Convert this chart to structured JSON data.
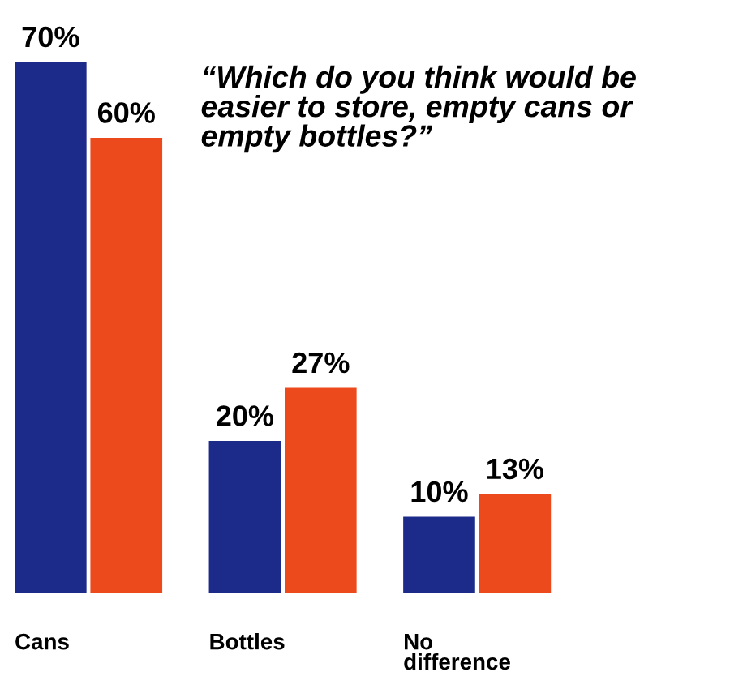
{
  "chart_data": {
    "type": "bar",
    "categories": [
      "Cans",
      "Bottles",
      "No\ndifference"
    ],
    "series": [
      {
        "color": "#1c2a8a",
        "values": [
          70,
          20,
          10
        ],
        "value_labels": [
          "70%",
          "20%",
          "10%"
        ]
      },
      {
        "color": "#ec4a1c",
        "values": [
          60,
          27,
          13
        ],
        "value_labels": [
          "60%",
          "27%",
          "13%"
        ]
      }
    ],
    "annotations": [
      "“Which do you think would be easier to store, empty cans or empty bottles?”"
    ],
    "tick_labels": "x",
    "grid": false
  }
}
